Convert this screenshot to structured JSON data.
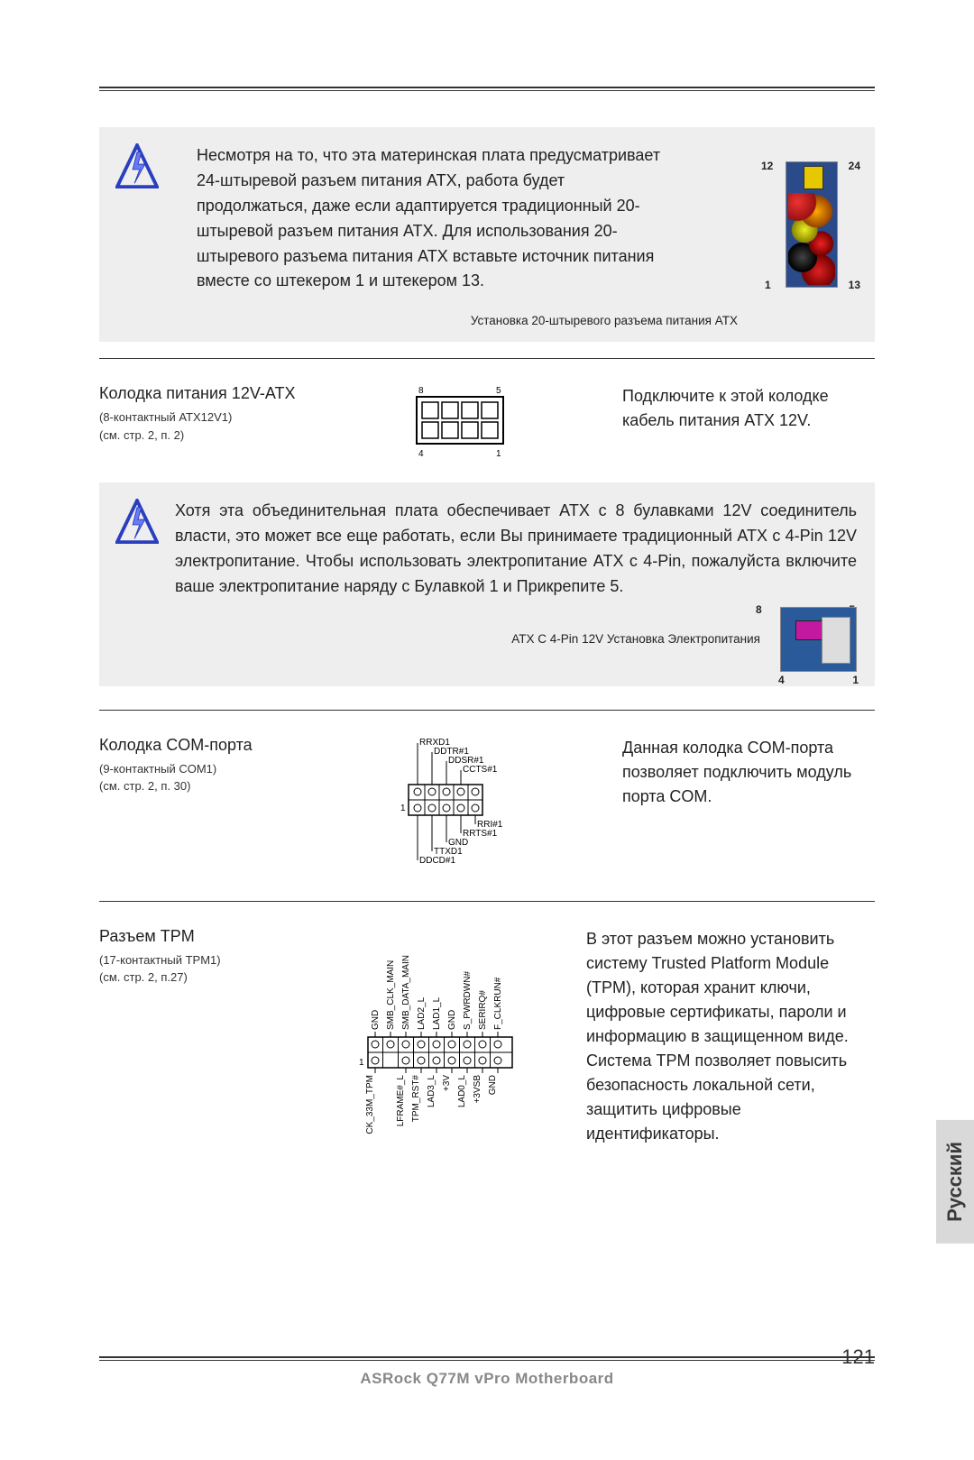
{
  "warning1": {
    "text": "Несмотря на то, что эта материнская плата предусматр­ивает 24-штыревой разъем питания ATX, работа будет продолжаться, даже если адаптируется традиционный 20-штыревой разъем питания ATX. Для использования 20-штыревого разъема питания ATX вставьте источник питания вместе со штекером 1 и штекером 13.",
    "caption": "Установка 20-штыревого разъема питания ATX",
    "pins": {
      "tl": "12",
      "tr": "24",
      "bl": "1",
      "br": "13"
    }
  },
  "sec_12v": {
    "title": "Колодка питания 12V-ATX",
    "sub1": "(8-контактный ATX12V1)",
    "sub2": "(см. стр. 2, п. 2)",
    "desc": "Подключите к этой колодке кабель питания ATX 12V.",
    "pins": {
      "tl": "8",
      "tr": "5",
      "bl": "4",
      "br": "1"
    }
  },
  "warning2": {
    "text": "Хотя эта объединительная плата обеспечивает ATX с 8 булавками 12V соединитель власти, это может все еще работать, если Вы принимаете традиционный ATX с 4-Pin 12V электропитание. Чтобы использовать электропитание ATX с 4-Pin, пожалуйста включите ваше электропитание наряду с Булавкой 1 и Прикрепите 5.",
    "caption": "ATX C 4-Pin 12V Установка Электропитания",
    "pins": {
      "tl": "8",
      "tr": "5",
      "bl": "4",
      "br": "1"
    }
  },
  "sec_com": {
    "title": "Колодка COM-порта",
    "sub1": "(9-контактный COM1)",
    "sub2": "(см. стр. 2, п. 30)",
    "desc": "Данная колодка COM-порта позволяет подключить модуль порта COM.",
    "labels_top": [
      "RRXD1",
      "DDTR#1",
      "DDSR#1",
      "CCTS#1"
    ],
    "labels_bot": [
      "DDCD#1",
      "TTXD1",
      "GND",
      "RRTS#1",
      "RRI#1"
    ],
    "pin1": "1"
  },
  "sec_tpm": {
    "title": "Разъем TPM",
    "sub1": "(17-контактный TPM1)",
    "sub2": "(см. стр. 2, п.27)",
    "desc": "В этот разъем можно установить систему Trusted Platform Module (TPM), которая хранит ключи, цифровые сертификаты, пароли и информацию в защищенном виде. Система TPM позволяет повысить безопасность локальной сети, защитить цифровые идентификаторы.",
    "labels_top": [
      "GND",
      "SMB_CLK_MAIN",
      "SMB_DATA_MAIN",
      "LAD2_L",
      "LAD1_L",
      "GND",
      "S_PWRDWN#",
      "SERIRQ#",
      "F_CLKRUN#"
    ],
    "labels_bot": [
      "CK_33M_TPM",
      "LFRAME#_L",
      "TPM_RST#",
      "LAD3_L",
      "+3V",
      "LAD0_L",
      "+3VSB",
      "GND"
    ],
    "pin1": "1"
  },
  "footer": {
    "product": "ASRock  Q77M vPro  Motherboard",
    "page": "121",
    "lang": "Русский"
  },
  "style": {
    "gray": "#eeeeee",
    "rule": "#333333",
    "icon_stroke": "#2a3ec0",
    "icon_fill": "#6a7af5",
    "footer_text": "#888888"
  }
}
